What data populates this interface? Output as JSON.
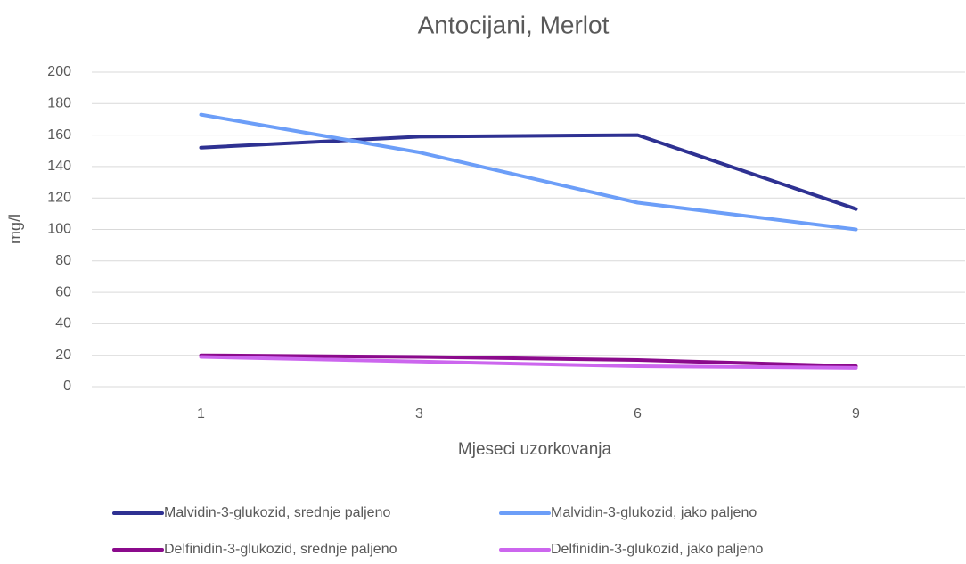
{
  "chart_data": {
    "type": "line",
    "title": "Antocijani, Merlot",
    "x_label": "Mjeseci uzorkovanja",
    "y_label": "mg/l",
    "categories": [
      "1",
      "3",
      "6",
      "9"
    ],
    "series": [
      {
        "name": "Malvidin-3-glukozid, srednje paljeno",
        "color": "#2e3192",
        "values": [
          152,
          159,
          160,
          113
        ]
      },
      {
        "name": "Malvidin-3-glukozid, jako paljeno",
        "color": "#6c9ef8",
        "values": [
          173,
          149,
          117,
          100
        ]
      },
      {
        "name": "Delfinidin-3-glukozid, srednje paljeno",
        "color": "#8b0a8c",
        "values": [
          20,
          19,
          17,
          13
        ]
      },
      {
        "name": "Delfinidin-3-glukozid, jako paljeno",
        "color": "#cc66ee",
        "values": [
          19,
          16,
          13,
          12
        ]
      }
    ],
    "ylim": [
      0,
      200
    ],
    "yticks": [
      0,
      20,
      40,
      60,
      80,
      100,
      120,
      140,
      160,
      180,
      200
    ],
    "grid": true,
    "legend": "bottom"
  }
}
